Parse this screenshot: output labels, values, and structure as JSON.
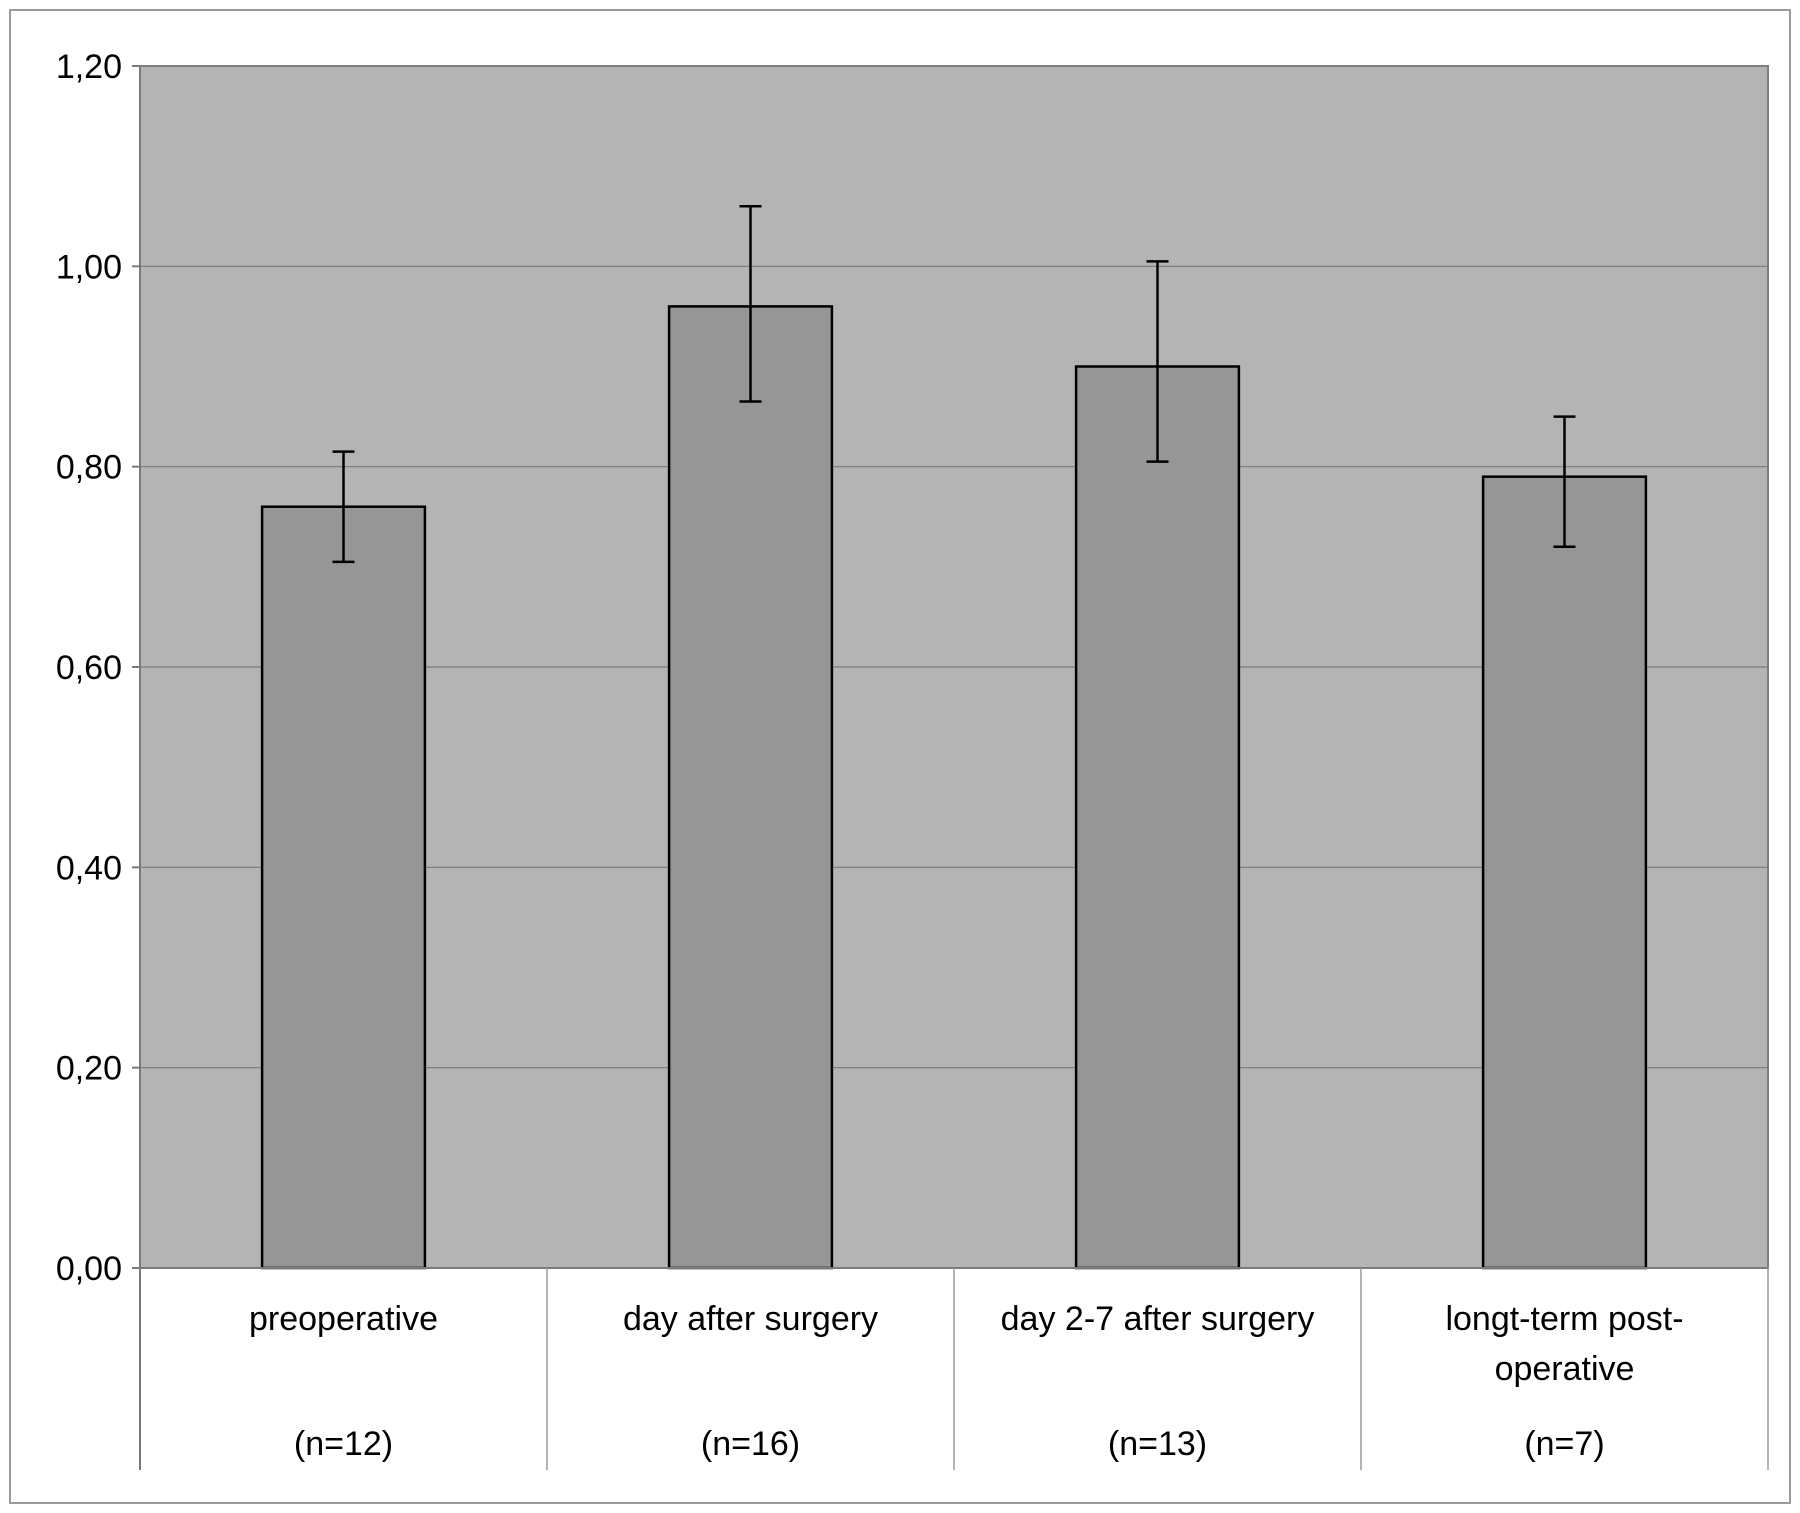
{
  "chart_data": {
    "type": "bar",
    "title": "",
    "xlabel": "",
    "ylabel": "",
    "ylim": [
      0,
      1.2
    ],
    "yticks": [
      "0,00",
      "0,20",
      "0,40",
      "0,60",
      "0,80",
      "1,00",
      "1,20"
    ],
    "grid": true,
    "legend": "none",
    "categories": [
      {
        "label": [
          "preoperative"
        ],
        "n": "(n=12)"
      },
      {
        "label": [
          "day after surgery"
        ],
        "n": "(n=16)"
      },
      {
        "label": [
          "day 2-7 after surgery"
        ],
        "n": "(n=13)"
      },
      {
        "label": [
          "longt-term post-",
          "operative"
        ],
        "n": "(n=7)"
      }
    ],
    "values": [
      0.76,
      0.96,
      0.9,
      0.79
    ],
    "error_low": [
      0.705,
      0.865,
      0.805,
      0.72
    ],
    "error_high": [
      0.815,
      1.06,
      1.005,
      0.85
    ],
    "colors": {
      "bar": "#969696",
      "plot_background": "#b4b4b4",
      "gridline": "#7a7a7a"
    }
  }
}
